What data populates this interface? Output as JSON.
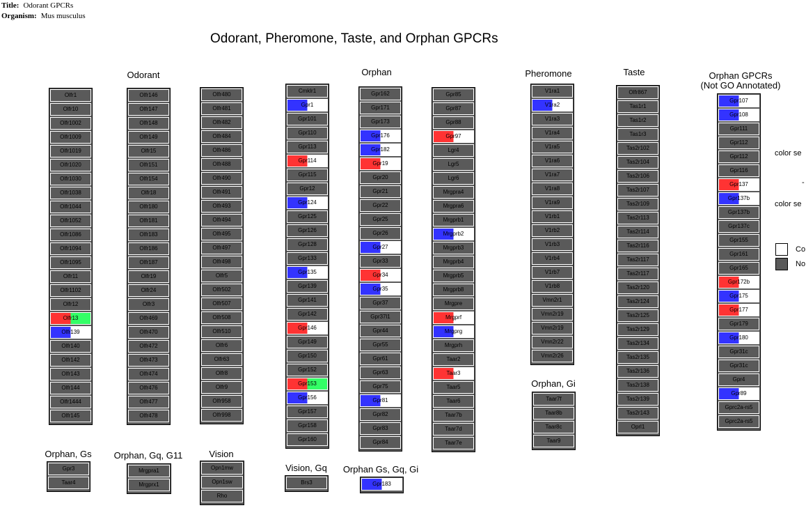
{
  "header": {
    "title_label": "Title:",
    "title_value": "Odorant GPCRs",
    "organism_label": "Organism:",
    "organism_value": "Mus musculus"
  },
  "main_title": "Odorant, Pheromone, Taste, and Orphan GPCRs",
  "colors": {
    "blue": "#3333ff",
    "red": "#ff3333",
    "green": "#33ff66",
    "white": "#ffffff",
    "gray": "#5a5a5a",
    "label_red": "#ff4444",
    "label_blue": "#4444ff"
  },
  "groups": [
    {
      "id": "odorant",
      "label": "Odorant"
    },
    {
      "id": "orphan",
      "label": "Orphan"
    },
    {
      "id": "pheromone",
      "label": "Pheromone"
    },
    {
      "id": "taste",
      "label": "Taste"
    },
    {
      "id": "orphan-not-go",
      "label": "Orphan GPCRs\n(Not GO Annotated)"
    },
    {
      "id": "orphan-gi",
      "label": "Orphan, Gi"
    },
    {
      "id": "orphan-gs",
      "label": "Orphan, Gs"
    },
    {
      "id": "orphan-gq-g11",
      "label": "Orphan, Gq, G11"
    },
    {
      "id": "vision",
      "label": "Vision"
    },
    {
      "id": "vision-gq",
      "label": "Vision, Gq"
    },
    {
      "id": "orphan-gs-gq-gi",
      "label": "Orphan Gs, Gq, Gi"
    }
  ],
  "columns": [
    {
      "id": "odorant-1",
      "genes": [
        {
          "name": "Olfr1"
        },
        {
          "name": "Olfr10"
        },
        {
          "name": "Olfr1002"
        },
        {
          "name": "Olfr1009"
        },
        {
          "name": "Olfr1019"
        },
        {
          "name": "Olfr1020"
        },
        {
          "name": "Olfr1030"
        },
        {
          "name": "Olfr1038"
        },
        {
          "name": "Olfr1044"
        },
        {
          "name": "Olfr1052"
        },
        {
          "name": "Olfr1086"
        },
        {
          "name": "Olfr1094"
        },
        {
          "name": "Olfr1095"
        },
        {
          "name": "Olfr11"
        },
        {
          "name": "Olfr1102"
        },
        {
          "name": "Olfr12"
        },
        {
          "name": "Olfr13",
          "color": [
            "red",
            "green"
          ]
        },
        {
          "name": "Olfr139",
          "color": [
            "blue",
            "white"
          ]
        },
        {
          "name": "Olfr140"
        },
        {
          "name": "Olfr142"
        },
        {
          "name": "Olfr143"
        },
        {
          "name": "Olfr144"
        },
        {
          "name": "Olfr1444"
        },
        {
          "name": "Olfr145"
        }
      ]
    },
    {
      "id": "odorant-2",
      "genes": [
        {
          "name": "Olfr146"
        },
        {
          "name": "Olfr147"
        },
        {
          "name": "Olfr148"
        },
        {
          "name": "Olfr149"
        },
        {
          "name": "Olfr15"
        },
        {
          "name": "Olfr151"
        },
        {
          "name": "Olfr154"
        },
        {
          "name": "Olfr18"
        },
        {
          "name": "Olfr180"
        },
        {
          "name": "Olfr181"
        },
        {
          "name": "Olfr183"
        },
        {
          "name": "Olfr186"
        },
        {
          "name": "Olfr187"
        },
        {
          "name": "Olfr19"
        },
        {
          "name": "Olfr24"
        },
        {
          "name": "Olfr3"
        },
        {
          "name": "Olfr469"
        },
        {
          "name": "Olfr470"
        },
        {
          "name": "Olfr472"
        },
        {
          "name": "Olfr473"
        },
        {
          "name": "Olfr474"
        },
        {
          "name": "Olfr476"
        },
        {
          "name": "Olfr477"
        },
        {
          "name": "Olfr478"
        }
      ]
    },
    {
      "id": "odorant-3",
      "genes": [
        {
          "name": "Olfr480"
        },
        {
          "name": "Olfr481"
        },
        {
          "name": "Olfr482"
        },
        {
          "name": "Olfr484"
        },
        {
          "name": "Olfr486"
        },
        {
          "name": "Olfr488"
        },
        {
          "name": "Olfr490"
        },
        {
          "name": "Olfr491"
        },
        {
          "name": "Olfr493"
        },
        {
          "name": "Olfr494"
        },
        {
          "name": "Olfr495"
        },
        {
          "name": "Olfr497"
        },
        {
          "name": "Olfr498"
        },
        {
          "name": "Olfr5"
        },
        {
          "name": "Olfr502"
        },
        {
          "name": "Olfr507"
        },
        {
          "name": "Olfr508"
        },
        {
          "name": "Olfr510"
        },
        {
          "name": "Olfr6"
        },
        {
          "name": "Olfr63"
        },
        {
          "name": "Olfr8"
        },
        {
          "name": "Olfr9"
        },
        {
          "name": "Olfr958"
        },
        {
          "name": "Olfr998"
        }
      ]
    },
    {
      "id": "orphan-1",
      "genes": [
        {
          "name": "Cmklr1"
        },
        {
          "name": "Gpr1",
          "color": [
            "blue",
            "white"
          ]
        },
        {
          "name": "Gpr101"
        },
        {
          "name": "Gpr110"
        },
        {
          "name": "Gpr113"
        },
        {
          "name": "Gpr114",
          "color": [
            "red",
            "white"
          ]
        },
        {
          "name": "Gpr115"
        },
        {
          "name": "Gpr12"
        },
        {
          "name": "Gpr124",
          "color": [
            "blue",
            "white"
          ]
        },
        {
          "name": "Gpr125"
        },
        {
          "name": "Gpr126"
        },
        {
          "name": "Gpr128"
        },
        {
          "name": "Gpr133"
        },
        {
          "name": "Gpr135",
          "color": [
            "blue",
            "white"
          ]
        },
        {
          "name": "Gpr139"
        },
        {
          "name": "Gpr141"
        },
        {
          "name": "Gpr142"
        },
        {
          "name": "Gpr146",
          "color": [
            "red",
            "white"
          ]
        },
        {
          "name": "Gpr149"
        },
        {
          "name": "Gpr150"
        },
        {
          "name": "Gpr152"
        },
        {
          "name": "Gpr153",
          "color": [
            "red",
            "green"
          ]
        },
        {
          "name": "Gpr156",
          "color": [
            "blue",
            "white"
          ]
        },
        {
          "name": "Gpr157"
        },
        {
          "name": "Gpr158"
        },
        {
          "name": "Gpr160"
        }
      ]
    },
    {
      "id": "orphan-2",
      "genes": [
        {
          "name": "Gpr162"
        },
        {
          "name": "Gpr171"
        },
        {
          "name": "Gpr173"
        },
        {
          "name": "Gpr176",
          "color": [
            "blue",
            "white"
          ]
        },
        {
          "name": "Gpr182",
          "color": [
            "blue",
            "white"
          ]
        },
        {
          "name": "Gpr19",
          "color": [
            "red",
            "white"
          ]
        },
        {
          "name": "Gpr20"
        },
        {
          "name": "Gpr21"
        },
        {
          "name": "Gpr22"
        },
        {
          "name": "Gpr25"
        },
        {
          "name": "Gpr26"
        },
        {
          "name": "Gpr27",
          "color": [
            "blue",
            "white"
          ]
        },
        {
          "name": "Gpr33"
        },
        {
          "name": "Gpr34",
          "color": [
            "red",
            "white"
          ]
        },
        {
          "name": "Gpr35",
          "color": [
            "blue",
            "white"
          ]
        },
        {
          "name": "Gpr37"
        },
        {
          "name": "Gpr37l1"
        },
        {
          "name": "Gpr44"
        },
        {
          "name": "Gpr55"
        },
        {
          "name": "Gpr61"
        },
        {
          "name": "Gpr63"
        },
        {
          "name": "Gpr75"
        },
        {
          "name": "Gpr81",
          "color": [
            "blue",
            "white"
          ]
        },
        {
          "name": "Gpr82"
        },
        {
          "name": "Gpr83"
        },
        {
          "name": "Gpr84"
        }
      ]
    },
    {
      "id": "orphan-3",
      "genes": [
        {
          "name": "Gpr85"
        },
        {
          "name": "Gpr87"
        },
        {
          "name": "Gpr88"
        },
        {
          "name": "Gpr97",
          "color": [
            "red",
            "white"
          ]
        },
        {
          "name": "Lgr4"
        },
        {
          "name": "Lgr5"
        },
        {
          "name": "Lgr6"
        },
        {
          "name": "Mrgpra4"
        },
        {
          "name": "Mrgpra6"
        },
        {
          "name": "Mrgprb1"
        },
        {
          "name": "Mrgprb2",
          "color": [
            "blue",
            "white"
          ]
        },
        {
          "name": "Mrgprb3"
        },
        {
          "name": "Mrgprb4"
        },
        {
          "name": "Mrgprb5"
        },
        {
          "name": "Mrgprb8"
        },
        {
          "name": "Mrgpre"
        },
        {
          "name": "Mrgprf",
          "color": [
            "red",
            "white"
          ]
        },
        {
          "name": "Mrgprg",
          "color": [
            "blue",
            "white"
          ]
        },
        {
          "name": "Mrgprh"
        },
        {
          "name": "Taar2"
        },
        {
          "name": "Taar3",
          "color": [
            "red",
            "white"
          ]
        },
        {
          "name": "Taar5"
        },
        {
          "name": "Taar6"
        },
        {
          "name": "Taar7b"
        },
        {
          "name": "Taar7d"
        },
        {
          "name": "Taar7e"
        }
      ]
    },
    {
      "id": "pheromone-1",
      "genes": [
        {
          "name": "V1ra1"
        },
        {
          "name": "V1ra2",
          "color": [
            "blue",
            "white"
          ]
        },
        {
          "name": "V1ra3"
        },
        {
          "name": "V1ra4"
        },
        {
          "name": "V1ra5"
        },
        {
          "name": "V1ra6"
        },
        {
          "name": "V1ra7"
        },
        {
          "name": "V1ra8"
        },
        {
          "name": "V1ra9"
        },
        {
          "name": "V1rb1"
        },
        {
          "name": "V1rb2"
        },
        {
          "name": "V1rb3"
        },
        {
          "name": "V1rb4"
        },
        {
          "name": "V1rb7"
        },
        {
          "name": "V1rb8"
        },
        {
          "name": "Vmn2r1"
        },
        {
          "name": "Vmn2r19"
        },
        {
          "name": "Vmn2r19"
        },
        {
          "name": "Vmn2r22"
        },
        {
          "name": "Vmn2r26"
        }
      ]
    },
    {
      "id": "orphan-gi-1",
      "genes": [
        {
          "name": "Taar7f"
        },
        {
          "name": "Taar8b"
        },
        {
          "name": "Taar8c"
        },
        {
          "name": "Taar9"
        }
      ]
    },
    {
      "id": "taste-1",
      "genes": [
        {
          "name": "Olfr867"
        },
        {
          "name": "Tas1r1"
        },
        {
          "name": "Tas1r2"
        },
        {
          "name": "Tas1r3"
        },
        {
          "name": "Tas2r102"
        },
        {
          "name": "Tas2r104"
        },
        {
          "name": "Tas2r106"
        },
        {
          "name": "Tas2r107"
        },
        {
          "name": "Tas2r109"
        },
        {
          "name": "Tas2r113"
        },
        {
          "name": "Tas2r114"
        },
        {
          "name": "Tas2r116"
        },
        {
          "name": "Tas2r117"
        },
        {
          "name": "Tas2r117"
        },
        {
          "name": "Tas2r120"
        },
        {
          "name": "Tas2r124"
        },
        {
          "name": "Tas2r125"
        },
        {
          "name": "Tas2r129"
        },
        {
          "name": "Tas2r134"
        },
        {
          "name": "Tas2r135"
        },
        {
          "name": "Tas2r136"
        },
        {
          "name": "Tas2r138"
        },
        {
          "name": "Tas2r139"
        },
        {
          "name": "Tas2r143"
        },
        {
          "name": "Oprl1"
        }
      ]
    },
    {
      "id": "orphan-not-go-1",
      "genes": [
        {
          "name": "Gpr107",
          "color": [
            "blue",
            "white"
          ]
        },
        {
          "name": "Gpr108",
          "color": [
            "blue",
            "white"
          ]
        },
        {
          "name": "Gpr111"
        },
        {
          "name": "Gpr112"
        },
        {
          "name": "Gpr112"
        },
        {
          "name": "Gpr116"
        },
        {
          "name": "Gpr137",
          "color": [
            "red",
            "white"
          ]
        },
        {
          "name": "Gpr137b",
          "color": [
            "blue",
            "white"
          ]
        },
        {
          "name": "Gpr137b"
        },
        {
          "name": "Gpr137c"
        },
        {
          "name": "Gpr155"
        },
        {
          "name": "Gpr161"
        },
        {
          "name": "Gpr165"
        },
        {
          "name": "Gpr172b",
          "color": [
            "red",
            "white"
          ]
        },
        {
          "name": "Gpr175",
          "color": [
            "blue",
            "white"
          ]
        },
        {
          "name": "Gpr177",
          "color": [
            "red",
            "white"
          ]
        },
        {
          "name": "Gpr179"
        },
        {
          "name": "Gpr180",
          "color": [
            "blue",
            "white"
          ]
        },
        {
          "name": "Gpr31c"
        },
        {
          "name": "Gpr31c"
        },
        {
          "name": "Gpr4"
        },
        {
          "name": "Gpr89",
          "color": [
            "blue",
            "white"
          ]
        },
        {
          "name": "Gprc2a-rs5"
        },
        {
          "name": "Gprc2a-rs5"
        }
      ]
    },
    {
      "id": "orphan-gs-1",
      "genes": [
        {
          "name": "Gpr3"
        },
        {
          "name": "Taar4"
        }
      ]
    },
    {
      "id": "orphan-gq-g11-1",
      "genes": [
        {
          "name": "Mrgpra1"
        },
        {
          "name": "Mrgprx1"
        }
      ]
    },
    {
      "id": "vision-1",
      "genes": [
        {
          "name": "Opn1mw"
        },
        {
          "name": "Opn1sw"
        },
        {
          "name": "Rho"
        }
      ]
    },
    {
      "id": "vision-gq-1",
      "genes": [
        {
          "name": "Brs3"
        }
      ]
    },
    {
      "id": "orphan-gs-gq-gi-1",
      "genes": [
        {
          "name": "Gpr183",
          "color": [
            "blue",
            "white"
          ]
        }
      ]
    }
  ],
  "legend": {
    "color_set_1": "color se",
    "dash": "-",
    "color_set_2": "color se",
    "swatch_white_label": "Co",
    "swatch_gray_label": "No"
  }
}
